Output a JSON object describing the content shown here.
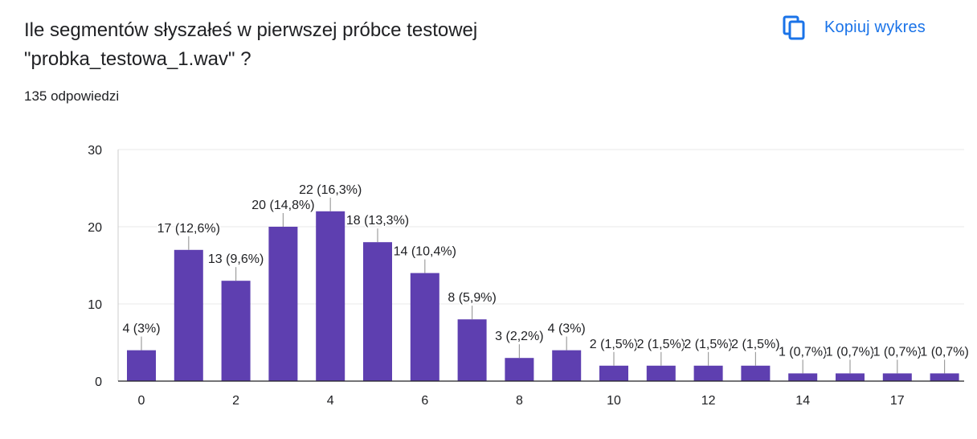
{
  "question": {
    "title_line1": "Ile segmentów słyszałeś w pierwszej próbce testowej",
    "title_line2": "\"probka_testowa_1.wav\" ?",
    "responses": "135 odpowiedzi"
  },
  "toolbar": {
    "copy_label": "Kopiuj wykres",
    "copy_icon": "copy-icon"
  },
  "colors": {
    "bar": "#5e3fb0",
    "accent": "#1a73e8",
    "grid": "#e8e8e8"
  },
  "chart_data": {
    "type": "bar",
    "categories": [
      "0",
      "1",
      "2",
      "3",
      "4",
      "5",
      "6",
      "7",
      "8",
      "9",
      "10",
      "11",
      "12",
      "13",
      "14",
      "15",
      "17",
      "18"
    ],
    "values": [
      4,
      17,
      13,
      20,
      22,
      18,
      14,
      8,
      3,
      4,
      2,
      2,
      2,
      2,
      1,
      1,
      1,
      1
    ],
    "data_labels": [
      "4 (3%)",
      "17 (12,6%)",
      "13 (9,6%)",
      "20 (14,8%)",
      "22 (16,3%)",
      "18 (13,3%)",
      "14 (10,4%)",
      "8 (5,9%)",
      "3 (2,2%)",
      "4 (3%)",
      "2 (1,5%)",
      "2 (1,5%)",
      "2 (1,5%)",
      "2 (1,5%)",
      "1 (0,7%)",
      "1 (0,7%)",
      "1 (0,7%)",
      "1 (0,7%)"
    ],
    "x_tick_labels": [
      "0",
      "2",
      "4",
      "6",
      "8",
      "10",
      "12",
      "14",
      "17"
    ],
    "y_ticks": [
      0,
      10,
      20,
      30
    ],
    "ylim": [
      0,
      30
    ],
    "grid": true,
    "legend": "none"
  }
}
